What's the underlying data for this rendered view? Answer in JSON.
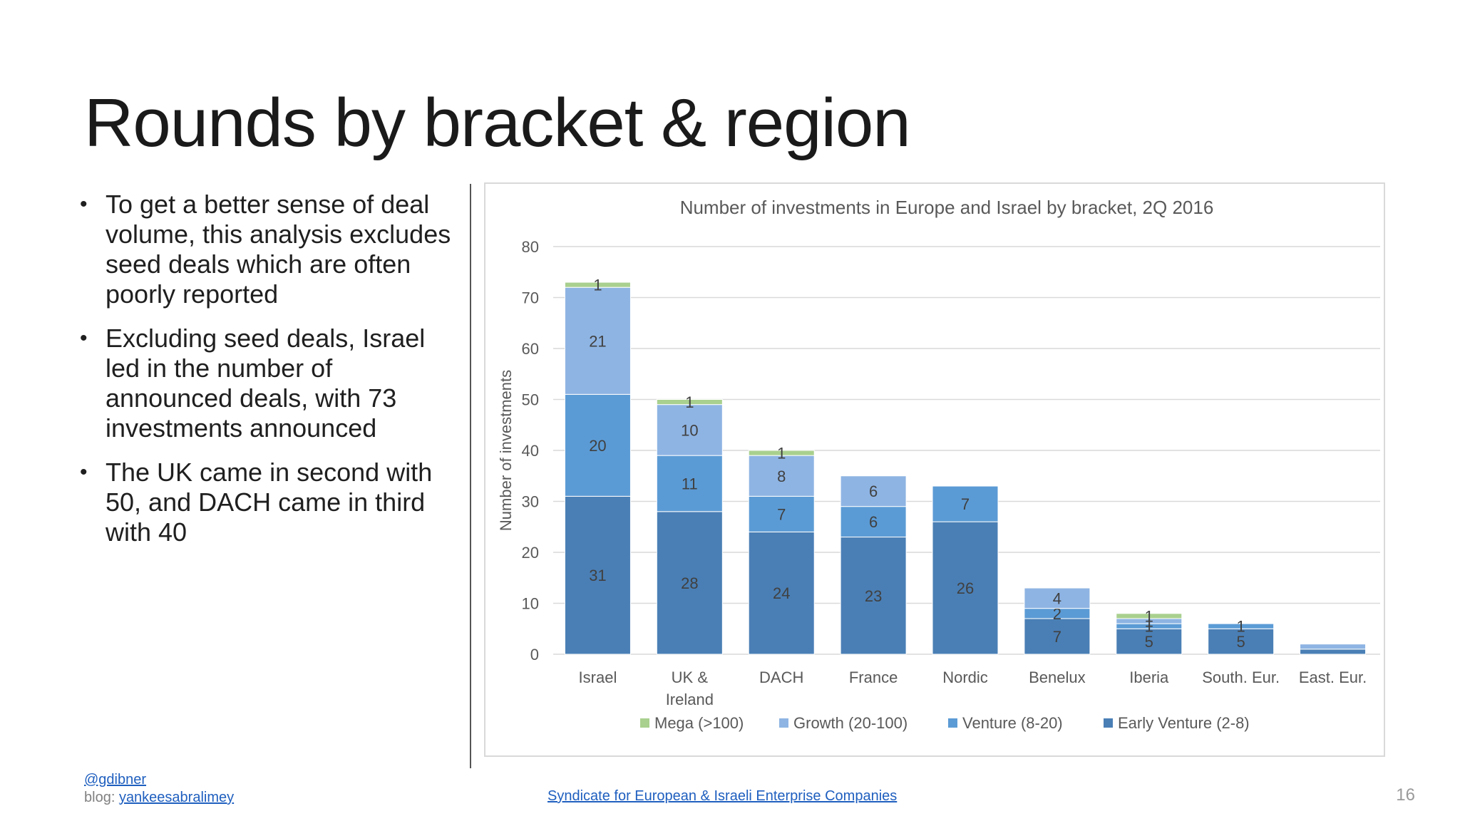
{
  "slide": {
    "title": "Rounds by bracket & region",
    "bullets": [
      "To get a better sense of deal volume, this analysis excludes seed deals which are often poorly reported",
      "Excluding seed deals, Israel led in the number of announced deals, with 73 investments announced",
      "The UK came in second with 50, and DACH came in third with 40"
    ],
    "footer": {
      "handle": "@gdibner",
      "blog_prefix": "blog: ",
      "blog_link": "yankeesabralimey",
      "center_link": "Syndicate for European & Israeli Enterprise Companies",
      "page_number": "16"
    }
  },
  "colors": {
    "mega": "#a9d08e",
    "growth": "#8eb4e3",
    "venture": "#5b9bd5",
    "early": "#4a7fb5",
    "grid": "#d9d9d9",
    "text": "#595959"
  },
  "chart_data": {
    "type": "bar",
    "stacked": true,
    "title": "Number of investments in Europe and Israel by bracket, 2Q 2016",
    "xlabel": "",
    "ylabel": "Number of investments",
    "ylim": [
      0,
      80
    ],
    "yticks": [
      0,
      10,
      20,
      30,
      40,
      50,
      60,
      70,
      80
    ],
    "grid": true,
    "legend_position": "bottom",
    "categories": [
      "Israel",
      "UK & Ireland",
      "DACH",
      "France",
      "Nordic",
      "Benelux",
      "Iberia",
      "South. Eur.",
      "East. Eur."
    ],
    "series": [
      {
        "name": "Early Venture (2-8)",
        "key": "early",
        "values": [
          31,
          28,
          24,
          23,
          26,
          7,
          5,
          5,
          1
        ],
        "labels": [
          "31",
          "28",
          "24",
          "23",
          "26",
          "7",
          "5",
          "5",
          ""
        ]
      },
      {
        "name": "Venture (8-20)",
        "key": "venture",
        "values": [
          20,
          11,
          7,
          6,
          7,
          2,
          1,
          1,
          0
        ],
        "labels": [
          "20",
          "11",
          "7",
          "6",
          "7",
          "2",
          "1",
          "1",
          ""
        ]
      },
      {
        "name": "Growth (20-100)",
        "key": "growth",
        "values": [
          21,
          10,
          8,
          6,
          0,
          4,
          1,
          0,
          1
        ],
        "labels": [
          "21",
          "10",
          "8",
          "6",
          "",
          "4",
          "1",
          "",
          ""
        ]
      },
      {
        "name": "Mega (>100)",
        "key": "mega",
        "values": [
          1,
          1,
          1,
          0,
          0,
          0,
          1,
          0,
          0
        ],
        "labels": [
          "1",
          "1",
          "1",
          "",
          "",
          "",
          "1",
          "",
          ""
        ]
      }
    ],
    "legend_order": [
      "mega",
      "growth",
      "venture",
      "early"
    ]
  }
}
